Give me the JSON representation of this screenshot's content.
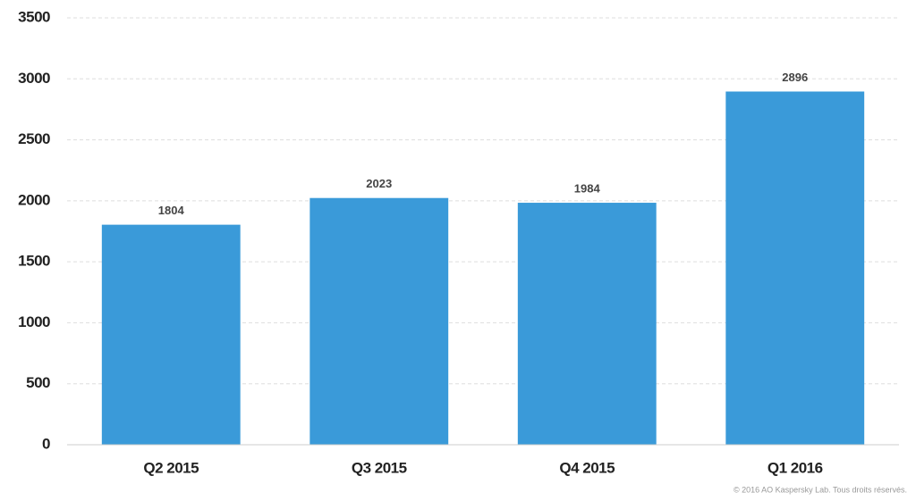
{
  "chart_data": {
    "type": "bar",
    "categories": [
      "Q2 2015",
      "Q3 2015",
      "Q4 2015",
      "Q1 2016"
    ],
    "values": [
      1804,
      2023,
      1984,
      2896
    ],
    "color": "#3a9ad9",
    "ylim": [
      0,
      3500
    ],
    "yticks": [
      0,
      500,
      1000,
      1500,
      2000,
      2500,
      3000,
      3500
    ],
    "grid": true,
    "copyright": "© 2016 AO Kaspersky Lab. Tous droits réservés."
  }
}
